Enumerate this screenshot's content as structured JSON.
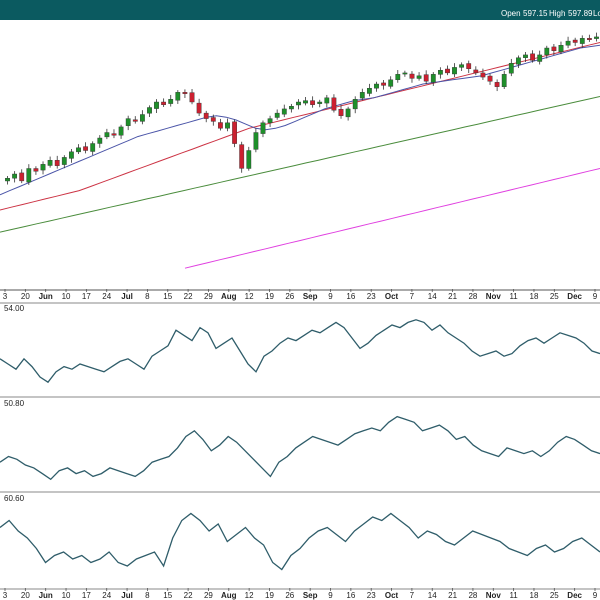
{
  "header": {
    "open_label": "Open",
    "open_value": "597.15",
    "high_label": "High",
    "high_value": "597.89",
    "low_label_partial": "Lo"
  },
  "colors": {
    "header_bg": "#0b5a60",
    "candle_up": "#1e8f2a",
    "candle_down": "#cc2030",
    "ma_short": "#4b55a8",
    "ma_mid": "#cc3344",
    "ma_long": "#4a8c3c",
    "ma_xlong": "#e040e0",
    "indicator_line": "#2f5d6a"
  },
  "chart_data": [
    {
      "type": "candlestick",
      "title": "",
      "moving_averages": [
        "short",
        "mid",
        "long",
        "xlong"
      ],
      "x_tick_labels": [
        {
          "text": "3",
          "bold": false
        },
        {
          "text": "20",
          "bold": false
        },
        {
          "text": "Jun",
          "bold": true
        },
        {
          "text": "10",
          "bold": false
        },
        {
          "text": "17",
          "bold": false
        },
        {
          "text": "24",
          "bold": false
        },
        {
          "text": "Jul",
          "bold": true
        },
        {
          "text": "8",
          "bold": false
        },
        {
          "text": "15",
          "bold": false
        },
        {
          "text": "22",
          "bold": false
        },
        {
          "text": "29",
          "bold": false
        },
        {
          "text": "Aug",
          "bold": true
        },
        {
          "text": "12",
          "bold": false
        },
        {
          "text": "19",
          "bold": false
        },
        {
          "text": "26",
          "bold": false
        },
        {
          "text": "Sep",
          "bold": true
        },
        {
          "text": "9",
          "bold": false
        },
        {
          "text": "16",
          "bold": false
        },
        {
          "text": "23",
          "bold": false
        },
        {
          "text": "Oct",
          "bold": true
        },
        {
          "text": "7",
          "bold": false
        },
        {
          "text": "14",
          "bold": false
        },
        {
          "text": "21",
          "bold": false
        },
        {
          "text": "28",
          "bold": false
        },
        {
          "text": "Nov",
          "bold": true
        },
        {
          "text": "11",
          "bold": false
        },
        {
          "text": "18",
          "bold": false
        },
        {
          "text": "25",
          "bold": false
        },
        {
          "text": "Dec",
          "bold": true
        },
        {
          "text": "9",
          "bold": false
        }
      ],
      "price_path": [
        505,
        508,
        503,
        512,
        510,
        515,
        518,
        514,
        520,
        524,
        527,
        525,
        530,
        534,
        538,
        536,
        542,
        548,
        546,
        551,
        556,
        560,
        558,
        562,
        567,
        566,
        560,
        552,
        548,
        546,
        541,
        545,
        530,
        512,
        525,
        538,
        545,
        548,
        552,
        555,
        557,
        560,
        561,
        558,
        560,
        563,
        554,
        550,
        555,
        562,
        567,
        570,
        573,
        572,
        576,
        580,
        581,
        577,
        579,
        575,
        580,
        583,
        581,
        585,
        587,
        584,
        581,
        578,
        575,
        571,
        580,
        588,
        592,
        594,
        590,
        594,
        599,
        597,
        601,
        604,
        603,
        606,
        605,
        607
      ],
      "ma_short": [
        493,
        496,
        499,
        502,
        505,
        508,
        511,
        514,
        517,
        520,
        523,
        526,
        529,
        532,
        535,
        537,
        539,
        541,
        543,
        545,
        547,
        549,
        550,
        549,
        547,
        544,
        541,
        540,
        541,
        543,
        546,
        549,
        552,
        555,
        557,
        559,
        561,
        562,
        563,
        565,
        567,
        569,
        571,
        573,
        574,
        575,
        576,
        577,
        578,
        579,
        581,
        583,
        585,
        587,
        589,
        591,
        593,
        595,
        597,
        599,
        600,
        601
      ],
      "ma_mid": [
        482,
        484,
        486,
        488,
        490,
        492,
        494,
        496,
        499,
        502,
        505,
        508,
        511,
        514,
        517,
        520,
        523,
        526,
        529,
        532,
        535,
        538,
        541,
        543,
        545,
        547,
        549,
        551,
        553,
        555,
        557,
        559,
        561,
        563,
        565,
        567,
        569,
        571,
        573,
        575,
        577,
        579,
        581,
        583,
        585,
        587,
        589,
        591,
        593,
        595,
        597,
        599,
        601,
        603
      ],
      "ma_long": [
        466,
        468,
        470,
        472,
        474,
        476,
        478,
        480,
        482,
        484,
        486,
        488,
        490,
        492,
        494,
        496,
        498,
        500,
        502,
        504,
        506,
        508,
        510,
        512,
        514,
        516,
        518,
        520,
        522,
        524,
        526,
        528,
        530,
        532,
        534,
        536,
        538,
        540,
        542,
        544,
        546,
        548,
        550,
        552,
        554,
        556,
        558,
        560,
        562,
        564
      ],
      "ma_xlong": [
        440,
        442,
        444,
        446,
        448,
        450,
        452,
        454,
        456,
        458,
        460,
        462,
        464,
        466,
        468,
        470,
        472,
        474,
        476,
        478,
        480,
        482,
        484,
        486,
        488,
        490,
        492,
        494,
        496,
        498,
        500,
        502,
        504,
        506,
        508,
        510,
        512
      ]
    },
    {
      "type": "line",
      "label": "54.00",
      "values": [
        52,
        50,
        48,
        52,
        49,
        45,
        43,
        47,
        49,
        48,
        50,
        49,
        48,
        47,
        49,
        51,
        52,
        50,
        48,
        53,
        55,
        57,
        63,
        61,
        59,
        64,
        62,
        56,
        58,
        60,
        55,
        50,
        47,
        53,
        55,
        58,
        60,
        59,
        61,
        63,
        62,
        64,
        66,
        64,
        60,
        56,
        58,
        61,
        63,
        65,
        64,
        66,
        67,
        66,
        63,
        65,
        62,
        60,
        58,
        55,
        53,
        54,
        55,
        53,
        54,
        57,
        59,
        60,
        58,
        60,
        62,
        61,
        60,
        58,
        55,
        54
      ]
    },
    {
      "type": "line",
      "label": "50.80",
      "values": [
        46,
        48,
        47,
        45,
        44,
        42,
        40,
        43,
        44,
        42,
        43,
        41,
        42,
        44,
        43,
        42,
        41,
        43,
        46,
        47,
        48,
        51,
        55,
        57,
        54,
        50,
        52,
        55,
        53,
        50,
        47,
        44,
        41,
        46,
        48,
        51,
        53,
        55,
        54,
        53,
        52,
        54,
        56,
        57,
        58,
        57,
        60,
        62,
        61,
        60,
        57,
        58,
        59,
        57,
        54,
        55,
        52,
        50,
        49,
        48,
        51,
        50,
        49,
        50,
        48,
        50,
        53,
        55,
        54,
        52,
        50,
        49
      ]
    },
    {
      "type": "line",
      "label": "60.60",
      "values": [
        58,
        60,
        57,
        55,
        52,
        48,
        50,
        51,
        49,
        50,
        48,
        49,
        51,
        48,
        47,
        49,
        50,
        51,
        47,
        55,
        60,
        62,
        60,
        57,
        59,
        54,
        56,
        58,
        55,
        53,
        48,
        46,
        50,
        52,
        55,
        57,
        58,
        56,
        54,
        57,
        59,
        61,
        60,
        62,
        60,
        58,
        55,
        57,
        56,
        54,
        53,
        55,
        57,
        56,
        55,
        54,
        52,
        51,
        50,
        52,
        53,
        51,
        52,
        54,
        55,
        53,
        51
      ]
    }
  ]
}
